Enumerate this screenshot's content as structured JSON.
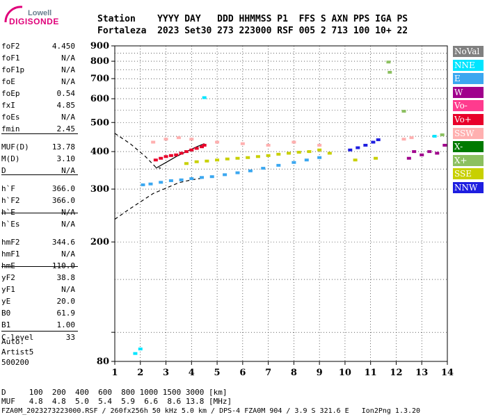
{
  "logo": {
    "line1": "Lowell",
    "line2": "DIGISONDE"
  },
  "header": {
    "row1": "Station    YYYY DAY   DDD HHMMSS P1  FFS S AXN PPS IGA PS",
    "row2": "Fortaleza  2023 Set30 273 223000 RSF 005 2 713 100 10+ 22"
  },
  "scaled": [
    {
      "k": "foF2",
      "v": "4.450"
    },
    {
      "k": "foF1",
      "v": "N/A"
    },
    {
      "k": "foF1p",
      "v": "N/A"
    },
    {
      "k": "foE",
      "v": "N/A"
    },
    {
      "k": "foEp",
      "v": "0.54"
    },
    {
      "k": "fxI",
      "v": "4.85"
    },
    {
      "k": "foEs",
      "v": "N/A"
    },
    {
      "k": "fmin",
      "v": "2.45"
    },
    {
      "k": "MUF(D)",
      "v": "13.78"
    },
    {
      "k": "M(D)",
      "v": "3.10"
    },
    {
      "k": "D",
      "v": "N/A"
    },
    {
      "k": "h`F",
      "v": "366.0"
    },
    {
      "k": "h`F2",
      "v": "366.0"
    },
    {
      "k": "h`E",
      "v": "N/A"
    },
    {
      "k": "h`Es",
      "v": "N/A"
    },
    {
      "k": "hmF2",
      "v": "344.6"
    },
    {
      "k": "hmF1",
      "v": "N/A"
    },
    {
      "k": "hmE",
      "v": "110.0"
    },
    {
      "k": "yF2",
      "v": "38.8"
    },
    {
      "k": "yF1",
      "v": "N/A"
    },
    {
      "k": "yE",
      "v": "20.0"
    },
    {
      "k": "B0",
      "v": "61.9"
    },
    {
      "k": "B1",
      "v": "1.00"
    },
    {
      "k": "C-level",
      "v": "33"
    }
  ],
  "auto": {
    "l1": "Auto:",
    "l2": "Artist5",
    "l3": "500200"
  },
  "legend": [
    {
      "label": "NoVal",
      "color": "#808080"
    },
    {
      "label": "NNE",
      "color": "#00e5ff"
    },
    {
      "label": "E",
      "color": "#3ba7f0"
    },
    {
      "label": "W",
      "color": "#a0008c"
    },
    {
      "label": "Vo-",
      "color": "#ff3b8e"
    },
    {
      "label": "Vo+",
      "color": "#e8002a"
    },
    {
      "label": "SSW",
      "color": "#ffb0b0"
    },
    {
      "label": "X-",
      "color": "#007a00"
    },
    {
      "label": "X+",
      "color": "#8cc060"
    },
    {
      "label": "SSE",
      "color": "#c8d000"
    },
    {
      "label": "NNW",
      "color": "#1e1ee0"
    }
  ],
  "footer": {
    "d_row": "D     100  200  400  600  800 1000 1500 3000 [km]",
    "muf_row": "MUF   4.8  4.8  5.0  5.4  5.9  6.6  8.6 13.8 [MHz]",
    "file_row": "FZA0M_2023273223000.RSF / 260fx256h 50 kHz 5.0 km / DPS-4 FZA0M 904 / 3.9 S 321.6 E   Ion2Png 1.3.20"
  },
  "chart_data": {
    "type": "scatter",
    "title": "",
    "xlabel": "",
    "ylabel": "",
    "xlim": [
      1,
      14
    ],
    "ylim": [
      80,
      900
    ],
    "y_scale": "log",
    "x_ticks": [
      1,
      2,
      3,
      4,
      5,
      6,
      7,
      8,
      9,
      10,
      11,
      12,
      13,
      14
    ],
    "y_ticks": [
      80,
      100,
      200,
      300,
      400,
      500,
      600,
      700,
      800,
      900
    ],
    "y_tick_labels": [
      "80",
      "",
      "200",
      "300",
      "400",
      "500",
      "600",
      "700",
      "800",
      "900"
    ],
    "grid": true,
    "series": [
      {
        "name": "E",
        "color": "#3ba7f0",
        "x": [
          2.1,
          2.4,
          2.8,
          3.2,
          3.6,
          4.0,
          4.4,
          4.8,
          5.3,
          5.8,
          6.3,
          6.8,
          7.4,
          8.0,
          8.5,
          9.0
        ],
        "y": [
          310,
          312,
          316,
          320,
          322,
          325,
          328,
          330,
          335,
          340,
          345,
          352,
          360,
          368,
          375,
          382
        ]
      },
      {
        "name": "Vo+",
        "color": "#e8002a",
        "x": [
          2.6,
          2.8,
          3.0,
          3.2,
          3.4,
          3.6,
          3.8,
          4.0,
          4.2,
          4.4,
          4.5
        ],
        "y": [
          375,
          380,
          385,
          388,
          390,
          395,
          400,
          405,
          410,
          415,
          420
        ]
      },
      {
        "name": "SSE",
        "color": "#c8d000",
        "x": [
          3.8,
          4.2,
          4.6,
          5.0,
          5.4,
          5.8,
          6.2,
          6.6,
          7.0,
          7.4,
          7.8,
          8.2,
          8.6,
          9.0,
          9.4,
          10.4,
          11.2
        ],
        "y": [
          365,
          370,
          372,
          375,
          378,
          380,
          382,
          385,
          388,
          392,
          395,
          398,
          400,
          405,
          395,
          375,
          380
        ]
      },
      {
        "name": "NNW",
        "color": "#1e1ee0",
        "x": [
          10.2,
          10.5,
          10.8,
          11.1,
          11.3
        ],
        "y": [
          405,
          412,
          420,
          430,
          438
        ]
      },
      {
        "name": "SSW",
        "color": "#ffb0b0",
        "x": [
          2.5,
          3.0,
          3.5,
          4.0,
          5.0,
          6.0,
          7.0,
          8.0,
          9.0,
          12.3,
          12.6
        ],
        "y": [
          430,
          440,
          445,
          440,
          430,
          425,
          420,
          430,
          420,
          440,
          445
        ]
      },
      {
        "name": "W",
        "color": "#a0008c",
        "x": [
          12.5,
          12.7,
          13.0,
          13.3,
          13.6,
          13.9
        ],
        "y": [
          380,
          400,
          390,
          400,
          395,
          420
        ]
      },
      {
        "name": "X+",
        "color": "#8cc060",
        "x": [
          11.7,
          11.75,
          12.3,
          13.8
        ],
        "y": [
          795,
          735,
          545,
          455
        ]
      },
      {
        "name": "NNE",
        "color": "#00e5ff",
        "x": [
          1.8,
          2.0,
          4.5,
          13.5
        ],
        "y": [
          85,
          88,
          605,
          450
        ]
      }
    ],
    "curves": [
      {
        "style": "dashed",
        "x": [
          1.0,
          1.6,
          2.2,
          2.6,
          2.8
        ],
        "y": [
          460,
          425,
          385,
          355,
          352
        ]
      },
      {
        "style": "dashed",
        "x": [
          1.0,
          1.5,
          2.0,
          2.5,
          3.0,
          3.5,
          4.0,
          4.5
        ],
        "y": [
          238,
          255,
          272,
          290,
          302,
          315,
          322,
          327
        ]
      },
      {
        "style": "solid",
        "x": [
          2.6,
          3.0,
          3.4,
          3.8,
          4.2,
          4.5
        ],
        "y": [
          352,
          368,
          385,
          400,
          415,
          425
        ]
      }
    ]
  }
}
